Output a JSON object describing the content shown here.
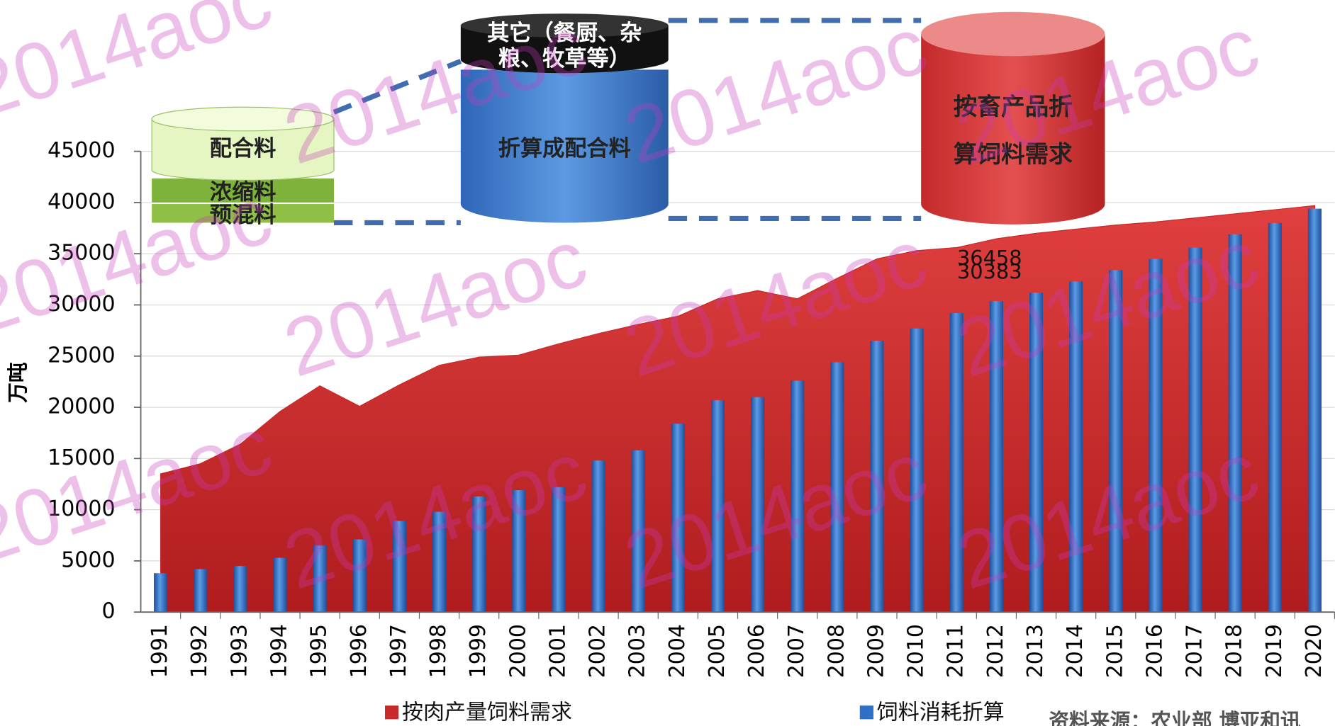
{
  "chart_data": {
    "type": "combo",
    "y_label": "万吨",
    "categories": [
      "1991",
      "1992",
      "1993",
      "1994",
      "1995",
      "1996",
      "1997",
      "1998",
      "1999",
      "2000",
      "2001",
      "2002",
      "2003",
      "2004",
      "2005",
      "2006",
      "2007",
      "2008",
      "2009",
      "2010",
      "2011",
      "2012",
      "2013",
      "2014",
      "2015",
      "2016",
      "2017",
      "2018",
      "2019",
      "2020"
    ],
    "series": [
      {
        "name": "按肉产量饲料需求",
        "mark": "area",
        "color": "#c8292b",
        "values": [
          13500,
          14500,
          16400,
          19600,
          22100,
          20100,
          22200,
          24100,
          24900,
          25100,
          26200,
          27200,
          28100,
          28900,
          30600,
          31400,
          30600,
          32600,
          34500,
          35300,
          35600,
          36458,
          37000,
          37400,
          37800,
          38100,
          38500,
          38900,
          39300,
          39700
        ],
        "value_labels": [
          null,
          null,
          null,
          null,
          null,
          null,
          null,
          null,
          null,
          null,
          null,
          null,
          null,
          null,
          null,
          null,
          null,
          null,
          null,
          null,
          null,
          "36458",
          null,
          null,
          null,
          null,
          null,
          null,
          null,
          null
        ]
      },
      {
        "name": "饲料消耗折算",
        "mark": "bar",
        "color": "#2f6fc6",
        "values": [
          3800,
          4200,
          4500,
          5300,
          6500,
          7100,
          8900,
          9800,
          11300,
          11900,
          12200,
          14800,
          15800,
          18400,
          20700,
          21000,
          22600,
          24400,
          26500,
          27700,
          29200,
          30383,
          31200,
          32300,
          33400,
          34500,
          35600,
          36900,
          38000,
          39400
        ],
        "value_labels": [
          null,
          null,
          null,
          null,
          null,
          null,
          null,
          null,
          null,
          null,
          null,
          null,
          null,
          null,
          null,
          null,
          null,
          null,
          null,
          null,
          null,
          "30383",
          null,
          null,
          null,
          null,
          null,
          null,
          null,
          null
        ]
      }
    ],
    "ylim": [
      0,
      45000
    ],
    "yticks": [
      0,
      5000,
      10000,
      15000,
      20000,
      25000,
      30000,
      35000,
      40000,
      45000
    ],
    "grid": true
  },
  "diagram": {
    "feed_stack": [
      "配合料",
      "浓缩料",
      "预混料"
    ],
    "other_top": [
      "其它（餐厨、杂",
      "粮、牧草等）"
    ],
    "converted": "折算成配合料",
    "demand": [
      "按畜产品折",
      "算饲料需求"
    ]
  },
  "source": "资料来源：农业部 博亚和讯",
  "watermark": "2014aoc"
}
